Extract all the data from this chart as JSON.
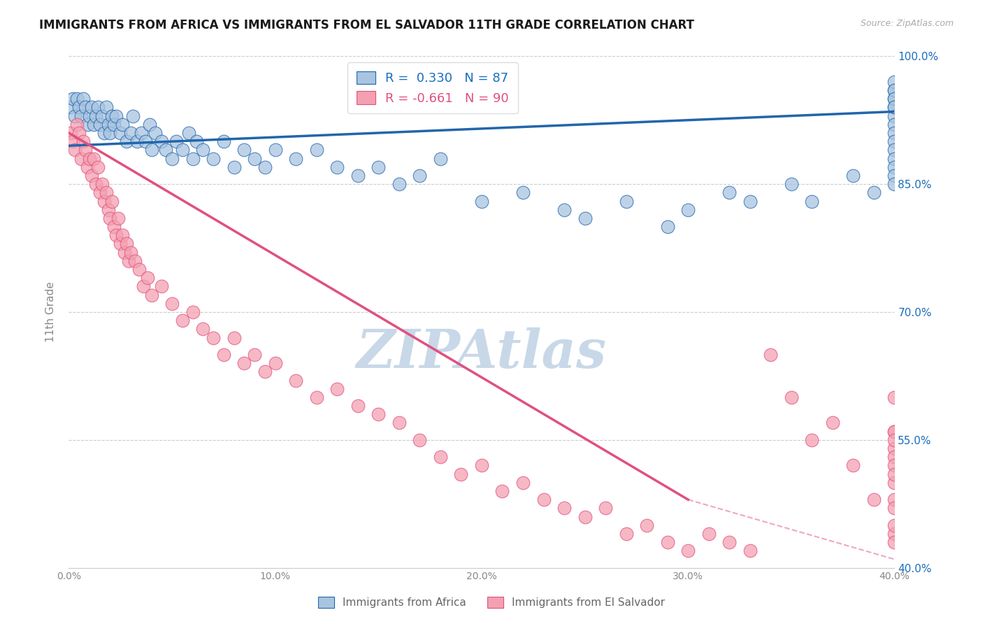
{
  "title": "IMMIGRANTS FROM AFRICA VS IMMIGRANTS FROM EL SALVADOR 11TH GRADE CORRELATION CHART",
  "source_text": "Source: ZipAtlas.com",
  "ylabel": "11th Grade",
  "x_min": 0.0,
  "x_max": 40.0,
  "y_min": 40.0,
  "y_max": 100.0,
  "x_ticks": [
    0.0,
    10.0,
    20.0,
    30.0,
    40.0
  ],
  "y_ticks": [
    40.0,
    55.0,
    70.0,
    85.0,
    100.0
  ],
  "blue_R": 0.33,
  "blue_N": 87,
  "pink_R": -0.661,
  "pink_N": 90,
  "blue_color": "#a8c4e0",
  "blue_line_color": "#2166ac",
  "pink_color": "#f4a0b0",
  "pink_line_color": "#e05080",
  "legend_R_color": "#1a6ebd",
  "title_color": "#1a1a1a",
  "grid_color": "#cccccc",
  "background_color": "#ffffff",
  "watermark_text": "ZIPAtlas",
  "watermark_color": "#c8d8e8",
  "blue_scatter_x": [
    0.1,
    0.2,
    0.3,
    0.4,
    0.5,
    0.6,
    0.7,
    0.8,
    0.9,
    1.0,
    1.1,
    1.2,
    1.3,
    1.4,
    1.5,
    1.6,
    1.7,
    1.8,
    1.9,
    2.0,
    2.1,
    2.2,
    2.3,
    2.5,
    2.6,
    2.8,
    3.0,
    3.1,
    3.3,
    3.5,
    3.7,
    3.9,
    4.0,
    4.2,
    4.5,
    4.7,
    5.0,
    5.2,
    5.5,
    5.8,
    6.0,
    6.2,
    6.5,
    7.0,
    7.5,
    8.0,
    8.5,
    9.0,
    9.5,
    10.0,
    11.0,
    12.0,
    13.0,
    14.0,
    15.0,
    16.0,
    17.0,
    18.0,
    20.0,
    22.0,
    24.0,
    25.0,
    27.0,
    29.0,
    30.0,
    32.0,
    33.0,
    35.0,
    36.0,
    38.0,
    39.0,
    40.0,
    40.0,
    40.0,
    40.0,
    40.0,
    40.0,
    40.0,
    40.0,
    40.0,
    40.0,
    40.0,
    40.0,
    40.0,
    40.0,
    40.0,
    40.0
  ],
  "blue_scatter_y": [
    94,
    95,
    93,
    95,
    94,
    93,
    95,
    94,
    92,
    93,
    94,
    92,
    93,
    94,
    92,
    93,
    91,
    94,
    92,
    91,
    93,
    92,
    93,
    91,
    92,
    90,
    91,
    93,
    90,
    91,
    90,
    92,
    89,
    91,
    90,
    89,
    88,
    90,
    89,
    91,
    88,
    90,
    89,
    88,
    90,
    87,
    89,
    88,
    87,
    89,
    88,
    89,
    87,
    86,
    87,
    85,
    86,
    88,
    83,
    84,
    82,
    81,
    83,
    80,
    82,
    84,
    83,
    85,
    83,
    86,
    84,
    96,
    95,
    94,
    93,
    92,
    91,
    90,
    89,
    88,
    87,
    86,
    85,
    97,
    96,
    95,
    94
  ],
  "pink_scatter_x": [
    0.1,
    0.2,
    0.3,
    0.4,
    0.5,
    0.6,
    0.7,
    0.8,
    0.9,
    1.0,
    1.1,
    1.2,
    1.3,
    1.4,
    1.5,
    1.6,
    1.7,
    1.8,
    1.9,
    2.0,
    2.1,
    2.2,
    2.3,
    2.4,
    2.5,
    2.6,
    2.7,
    2.8,
    2.9,
    3.0,
    3.2,
    3.4,
    3.6,
    3.8,
    4.0,
    4.5,
    5.0,
    5.5,
    6.0,
    6.5,
    7.0,
    7.5,
    8.0,
    8.5,
    9.0,
    9.5,
    10.0,
    11.0,
    12.0,
    13.0,
    14.0,
    15.0,
    16.0,
    17.0,
    18.0,
    19.0,
    20.0,
    21.0,
    22.0,
    23.0,
    24.0,
    25.0,
    26.0,
    27.0,
    28.0,
    29.0,
    30.0,
    31.0,
    32.0,
    33.0,
    34.0,
    35.0,
    36.0,
    37.0,
    38.0,
    39.0,
    40.0,
    40.0,
    40.0,
    40.0,
    40.0,
    40.0,
    40.0,
    40.0,
    40.0,
    40.0,
    40.0,
    40.0,
    40.0,
    40.0
  ],
  "pink_scatter_y": [
    91,
    90,
    89,
    92,
    91,
    88,
    90,
    89,
    87,
    88,
    86,
    88,
    85,
    87,
    84,
    85,
    83,
    84,
    82,
    81,
    83,
    80,
    79,
    81,
    78,
    79,
    77,
    78,
    76,
    77,
    76,
    75,
    73,
    74,
    72,
    73,
    71,
    69,
    70,
    68,
    67,
    65,
    67,
    64,
    65,
    63,
    64,
    62,
    60,
    61,
    59,
    58,
    57,
    55,
    53,
    51,
    52,
    49,
    50,
    48,
    47,
    46,
    47,
    44,
    45,
    43,
    42,
    44,
    43,
    42,
    65,
    60,
    55,
    57,
    52,
    48,
    56,
    54,
    53,
    50,
    60,
    52,
    48,
    56,
    44,
    47,
    55,
    51,
    45,
    43
  ],
  "blue_trend_x0": 0.0,
  "blue_trend_x1": 40.0,
  "blue_trend_y0": 89.5,
  "blue_trend_y1": 93.5,
  "pink_trend_x0": 0.0,
  "pink_trend_x1": 30.0,
  "pink_trend_y0": 91.0,
  "pink_trend_y1": 48.0,
  "pink_dash_x0": 30.0,
  "pink_dash_x1": 40.0,
  "pink_dash_y0": 48.0,
  "pink_dash_y1": 41.0
}
